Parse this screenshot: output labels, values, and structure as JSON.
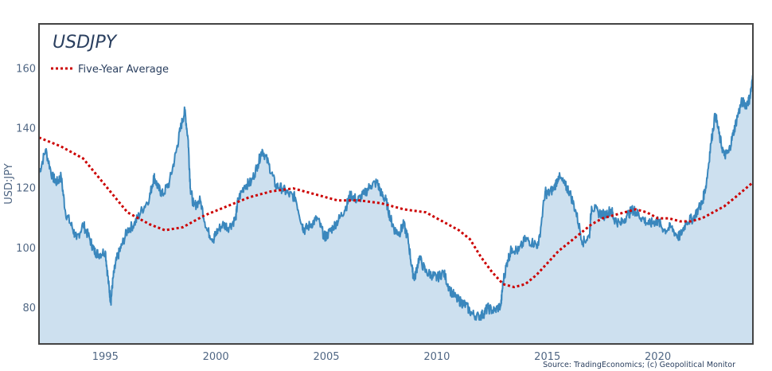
{
  "chart_data": {
    "type": "area",
    "title": "USDJPY",
    "xlabel": "",
    "ylabel": "USD:JPY",
    "xlim": [
      1992.0,
      2024.3
    ],
    "ylim": [
      68,
      175
    ],
    "xticks": [
      1995,
      2000,
      2005,
      2010,
      2015,
      2020
    ],
    "yticks": [
      80,
      100,
      120,
      140,
      160
    ],
    "legend": {
      "position": "top-left",
      "entries": [
        "Five-Year Average"
      ]
    },
    "source": "Source: TradingEconomics; (c) Geopolitical Monitor",
    "colors": {
      "price_line": "#3a87bd",
      "price_fill": "#cde0ef",
      "average_line": "#cc0000",
      "frame": "#444444",
      "text": "#506784"
    },
    "series": [
      {
        "type": "area",
        "x": [
          1992.0,
          1992.3,
          1992.6,
          1992.8,
          1993.0,
          1993.2,
          1993.5,
          1993.7,
          1994.0,
          1994.3,
          1994.5,
          1994.7,
          1995.0,
          1995.15,
          1995.25,
          1995.35,
          1995.5,
          1995.7,
          1996.0,
          1996.3,
          1996.6,
          1997.0,
          1997.2,
          1997.4,
          1997.6,
          1997.9,
          1998.2,
          1998.4,
          1998.6,
          1998.75,
          1998.85,
          1999.0,
          1999.3,
          1999.6,
          1999.9,
          2000.0,
          2000.3,
          2000.6,
          2000.9,
          2001.0,
          2001.3,
          2001.6,
          2001.9,
          2002.1,
          2002.4,
          2002.7,
          2003.0,
          2003.3,
          2003.6,
          2003.9,
          2004.0,
          2004.3,
          2004.6,
          2004.9,
          2005.0,
          2005.3,
          2005.6,
          2005.9,
          2006.1,
          2006.4,
          2006.7,
          2007.0,
          2007.3,
          2007.5,
          2007.7,
          2007.9,
          2008.1,
          2008.3,
          2008.5,
          2008.7,
          2008.9,
          2009.0,
          2009.2,
          2009.5,
          2009.8,
          2010.0,
          2010.3,
          2010.6,
          2010.9,
          2011.1,
          2011.3,
          2011.6,
          2011.9,
          2012.1,
          2012.3,
          2012.6,
          2012.9,
          2013.0,
          2013.2,
          2013.4,
          2013.7,
          2014.0,
          2014.3,
          2014.6,
          2014.9,
          2015.0,
          2015.3,
          2015.5,
          2015.8,
          2016.0,
          2016.3,
          2016.6,
          2016.9,
          2017.0,
          2017.3,
          2017.6,
          2017.9,
          2018.0,
          2018.3,
          2018.6,
          2018.9,
          2019.0,
          2019.3,
          2019.6,
          2019.9,
          2020.0,
          2020.3,
          2020.6,
          2020.9,
          2021.0,
          2021.3,
          2021.6,
          2021.9,
          2022.0,
          2022.2,
          2022.4,
          2022.6,
          2022.8,
          2023.0,
          2023.2,
          2023.4,
          2023.6,
          2023.8,
          2024.0,
          2024.15,
          2024.3
        ],
        "y": [
          125,
          133,
          124,
          122,
          124,
          112,
          107,
          103,
          108,
          103,
          99,
          98,
          99,
          88,
          82,
          90,
          96,
          100,
          106,
          108,
          112,
          117,
          124,
          120,
          118,
          122,
          132,
          140,
          146,
          136,
          120,
          114,
          116,
          106,
          103,
          105,
          108,
          107,
          110,
          116,
          121,
          122,
          128,
          133,
          128,
          121,
          120,
          118,
          117,
          108,
          106,
          108,
          110,
          104,
          104,
          107,
          110,
          114,
          118,
          116,
          118,
          121,
          122,
          118,
          116,
          110,
          106,
          105,
          108,
          103,
          92,
          90,
          97,
          92,
          91,
          90,
          92,
          86,
          83,
          82,
          81,
          78,
          77,
          78,
          80,
          79,
          81,
          89,
          96,
          100,
          99,
          103,
          102,
          101,
          119,
          118,
          120,
          124,
          121,
          119,
          112,
          102,
          104,
          114,
          112,
          111,
          113,
          110,
          108,
          111,
          113,
          112,
          110,
          108,
          109,
          109,
          106,
          107,
          104,
          104,
          109,
          110,
          114,
          115,
          122,
          135,
          145,
          137,
          131,
          132,
          138,
          144,
          149,
          148,
          150,
          157
        ],
        "min": 76,
        "max": 158
      },
      {
        "name": "Five-Year Average",
        "type": "line",
        "style": "dotted",
        "x": [
          1992.0,
          1993.0,
          1994.0,
          1995.0,
          1996.0,
          1997.0,
          1997.7,
          1998.5,
          1999.5,
          2000.5,
          2001.5,
          2002.5,
          2003.5,
          2004.5,
          2005.5,
          2006.5,
          2007.5,
          2008.5,
          2009.5,
          2010.5,
          2011.0,
          2011.5,
          2012.0,
          2012.5,
          2013.0,
          2013.5,
          2014.0,
          2014.5,
          2015.0,
          2015.5,
          2016.0,
          2016.5,
          2017.0,
          2017.5,
          2018.0,
          2018.5,
          2019.0,
          2019.5,
          2020.0,
          2020.5,
          2021.0,
          2021.5,
          2022.0,
          2022.5,
          2023.0,
          2023.5,
          2024.3
        ],
        "y": [
          137,
          134,
          130,
          121,
          112,
          108,
          106,
          107,
          111,
          114,
          117,
          119,
          120,
          118,
          116,
          116,
          115,
          113,
          112,
          108,
          106,
          103,
          97,
          92,
          88,
          87,
          88,
          91,
          95,
          99,
          102,
          105,
          108,
          110,
          111,
          112,
          113,
          112,
          110,
          110,
          109,
          109,
          110,
          112,
          114,
          117,
          122
        ]
      }
    ]
  }
}
